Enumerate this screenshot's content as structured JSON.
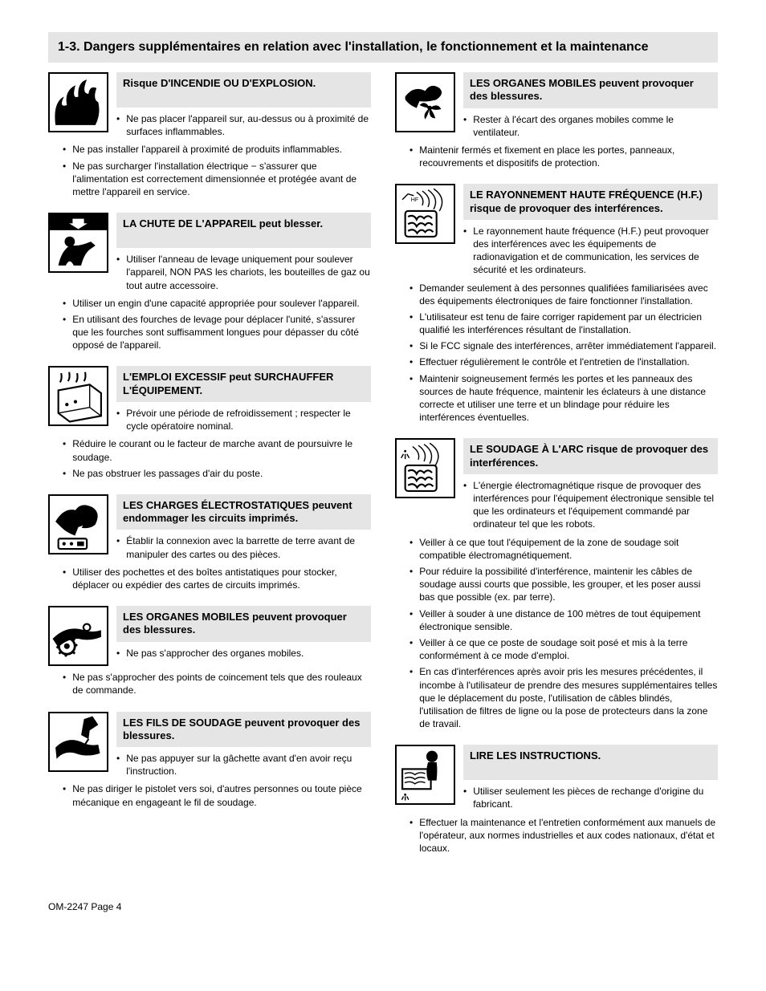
{
  "section_header": "1-3. Dangers supplémentaires en relation avec l'installation, le fonctionnement et la maintenance",
  "page_number": "OM-2247 Page 4",
  "colors": {
    "header_bg": "#e5e5e5",
    "text": "#000000",
    "page_bg": "#ffffff"
  },
  "left": [
    {
      "icon": "fire",
      "title": "Risque D'INCENDIE OU D'EXPLOSION.",
      "first": "Ne pas placer l'appareil sur, au-dessus ou à proximité de surfaces inflammables.",
      "items": [
        "Ne pas installer l'appareil à proximité de produits inflammables.",
        "Ne pas surcharger l'installation électrique − s'assurer que l'alimentation est correctement dimensionnée et protégée avant de mettre l'appareil en service."
      ]
    },
    {
      "icon": "falling",
      "title": "LA CHUTE DE L'APPAREIL peut blesser.",
      "first": "Utiliser l'anneau de levage uniquement pour soulever l'appareil, NON PAS les chariots, les bouteilles de gaz ou tout autre accessoire.",
      "items": [
        "Utiliser un engin d'une capacité appropriée pour soulever l'appareil.",
        "En utilisant des fourches de levage pour déplacer l'unité, s'assurer que les fourches sont suffisamment longues pour dépasser du côté opposé de l'appareil."
      ]
    },
    {
      "icon": "overheat",
      "title": "L'EMPLOI EXCESSIF peut SURCHAUFFER L'ÉQUIPEMENT.",
      "first": "Prévoir une période de refroidissement ; respecter le cycle opératoire nominal.",
      "items": [
        "Réduire le courant ou le facteur de marche avant de poursuivre le soudage.",
        "Ne pas obstruer les passages d'air du poste."
      ]
    },
    {
      "icon": "static",
      "title": "LES CHARGES ÉLECTROSTATIQUES peuvent endommager les circuits imprimés.",
      "first": "Établir la connexion avec la barrette de terre avant de manipuler des cartes ou des pièces.",
      "items": [
        "Utiliser des pochettes et des boîtes antistatiques pour stocker, déplacer ou expédier des cartes de circuits imprimés."
      ]
    },
    {
      "icon": "moving",
      "title": "LES ORGANES MOBILES peuvent provoquer des blessures.",
      "first": "Ne pas s'approcher des organes mobiles.",
      "items": [
        "Ne pas s'approcher des points de coincement tels que des rouleaux de commande."
      ]
    },
    {
      "icon": "wire",
      "title": "LES FILS DE SOUDAGE peuvent provoquer des blessures.",
      "first": "Ne pas appuyer sur la gâchette avant d'en avoir reçu l'instruction.",
      "items": [
        "Ne pas diriger le pistolet vers soi, d'autres personnes ou toute pièce mécanique en engageant le fil de soudage."
      ]
    }
  ],
  "right": [
    {
      "icon": "fan",
      "title": "LES ORGANES MOBILES peuvent provoquer des blessures.",
      "first": "Rester à l'écart des organes mobiles comme le ventilateur.",
      "items": [
        "Maintenir fermés et fixement en place les portes, panneaux, recouvrements et dispositifs de protection."
      ]
    },
    {
      "icon": "hf",
      "title": "LE RAYONNEMENT HAUTE FRÉQUENCE (H.F.) risque de provoquer des interférences.",
      "first": "Le rayonnement haute fréquence (H.F.) peut provoquer des interférences avec les équipements de radionavigation et de communication, les services de sécurité et les ordinateurs.",
      "items": [
        "Demander seulement à des personnes qualifiées familiarisées avec des équipements électroniques de faire fonctionner l'installation.",
        "L'utilisateur est tenu de faire corriger rapidement par un électricien qualifié les interférences résultant de l'installation.",
        "Si le FCC signale des interférences, arrêter immédiatement l'appareil.",
        "Effectuer régulièrement le contrôle et l'entretien de l'installation.",
        "Maintenir soigneusement fermés les portes et les panneaux des sources de haute fréquence, maintenir les éclateurs à une distance correcte et utiliser une terre et un blindage pour réduire les interférences éventuelles."
      ]
    },
    {
      "icon": "arc",
      "title": "LE SOUDAGE À L'ARC risque de provoquer des interférences.",
      "first": "L'énergie électromagnétique risque de provoquer des interférences pour l'équipement électronique sensible tel que les ordinateurs et l'équipement commandé par ordinateur tel que les robots.",
      "items": [
        "Veiller à ce que tout l'équipement de la zone de soudage soit compatible électromagnétiquement.",
        "Pour réduire la possibilité d'interférence, maintenir les câbles de soudage aussi courts que possible, les grouper, et les poser aussi bas que possible (ex. par terre).",
        "Veiller à souder à une distance de 100 mètres de tout équipement électronique sensible.",
        "Veiller à ce que ce poste de soudage soit posé et mis à la terre conformément à ce mode d'emploi.",
        "En cas d'interférences après avoir pris les mesures précédentes, il incombe à l'utilisateur de prendre des mesures supplémentaires telles que le déplacement du poste, l'utilisation de câbles blindés, l'utilisation de filtres de ligne ou la pose de protecteurs dans la zone de travail."
      ]
    },
    {
      "icon": "manual",
      "title": "LIRE LES INSTRUCTIONS.",
      "first": "Utiliser seulement les pièces de rechange d'origine du fabricant.",
      "items": [
        "Effectuer la maintenance et l'entretien conformément aux manuels de l'opérateur, aux normes industrielles et aux codes nationaux, d'état et locaux."
      ]
    }
  ]
}
